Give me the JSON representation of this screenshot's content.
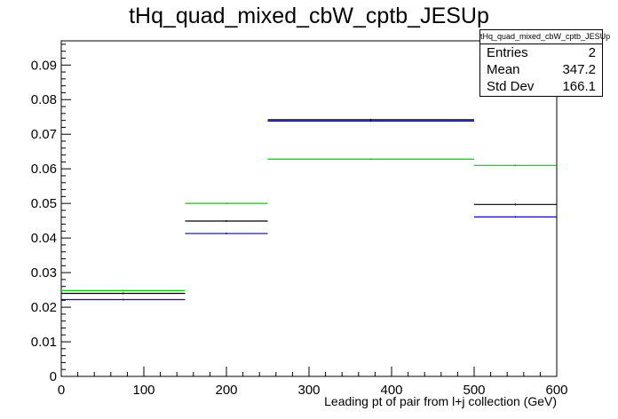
{
  "chart_data": {
    "type": "step",
    "title": "tHq_quad_mixed_cbW_cptb_JESUp",
    "xlabel": "Leading pt of pair from l+j collection (GeV)",
    "ylabel": "",
    "xlim": [
      0,
      600
    ],
    "ylim": [
      0,
      0.097
    ],
    "x_ticks": [
      0,
      100,
      200,
      300,
      400,
      500,
      600
    ],
    "y_ticks": [
      0,
      0.01,
      0.02,
      0.03,
      0.04,
      0.05,
      0.06,
      0.07,
      0.08,
      0.09
    ],
    "bin_edges": [
      0,
      150,
      250,
      500,
      600
    ],
    "grid": false,
    "series": [
      {
        "color": "#00cc00",
        "values": [
          0.0248,
          0.05,
          0.0628,
          0.061
        ]
      },
      {
        "color": "#000000",
        "values": [
          0.024,
          0.0449,
          0.0742,
          0.0497
        ]
      },
      {
        "color": "#0000cc",
        "values": [
          0.0222,
          0.0413,
          0.0738,
          0.0461
        ]
      }
    ]
  },
  "stats_box": {
    "name": "tHq_quad_mixed_cbW_cptb_JESUp",
    "entries_label": "Entries",
    "entries_value": "2",
    "mean_label": "Mean",
    "mean_value": "347.2",
    "stddev_label": "Std Dev",
    "stddev_value": "166.1"
  }
}
